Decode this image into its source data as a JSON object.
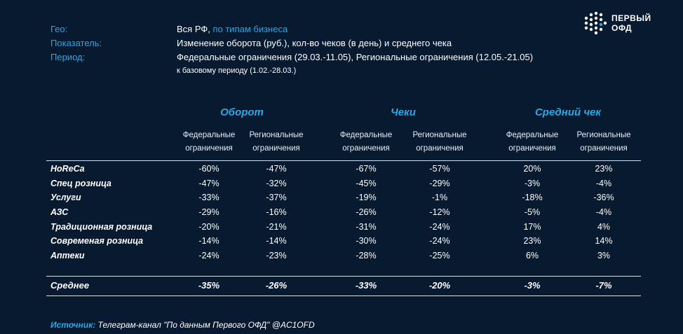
{
  "meta": {
    "geo_label": "Гео:",
    "geo_value": "Вся РФ,",
    "geo_link": "по типам бизнеса",
    "indicator_label": "Показатель:",
    "indicator_value": "Изменение оборота (руб.), кол-во чеков (в день) и среднего чека",
    "period_label": "Период:",
    "period_value": "Федеральные ограничения (29.03.-11.05), Региональные ограничения (12.05.-21.05)",
    "period_sub": "к базовому периоду (1.02.-28.03.)"
  },
  "logo": {
    "line1": "ПЕРВЫЙ",
    "line2": "ОФД"
  },
  "groups": [
    "Оборот",
    "Чеки",
    "Средний чек"
  ],
  "subheaders": [
    [
      "Федеральные",
      "ограничения"
    ],
    [
      "Региональные",
      "ограничения"
    ],
    [
      "Федеральные",
      "ограничения"
    ],
    [
      "Региональные",
      "ограничения"
    ],
    [
      "Федеральные",
      "ограничения"
    ],
    [
      "Региональные",
      "ограничения"
    ]
  ],
  "rows": [
    {
      "name": "HoReCa",
      "values": [
        "-60%",
        "-47%",
        "-67%",
        "-57%",
        "20%",
        "23%"
      ]
    },
    {
      "name": "Спец розница",
      "values": [
        "-47%",
        "-32%",
        "-45%",
        "-29%",
        "-3%",
        "-4%"
      ]
    },
    {
      "name": "Услуги",
      "values": [
        "-33%",
        "-37%",
        "-19%",
        "-1%",
        "-18%",
        "-36%"
      ]
    },
    {
      "name": "АЗС",
      "values": [
        "-29%",
        "-16%",
        "-26%",
        "-12%",
        "-5%",
        "-4%"
      ]
    },
    {
      "name": "Традиционная розница",
      "values": [
        "-20%",
        "-21%",
        "-31%",
        "-24%",
        "17%",
        "4%"
      ]
    },
    {
      "name": "Современая розница",
      "values": [
        "-14%",
        "-14%",
        "-30%",
        "-24%",
        "23%",
        "14%"
      ]
    },
    {
      "name": "Аптеки",
      "values": [
        "-24%",
        "-23%",
        "-28%",
        "-25%",
        "6%",
        "3%"
      ]
    }
  ],
  "average": {
    "name": "Среднее",
    "values": [
      "-35%",
      "-26%",
      "-33%",
      "-20%",
      "-3%",
      "-7%"
    ]
  },
  "source": {
    "label": "Источник:",
    "text": "Телеграм-канал \"По данным Первого ОФД\" @AC1OFD"
  },
  "colors": {
    "background": "#081a30",
    "accent": "#2aa8e8",
    "text": "#ffffff"
  }
}
